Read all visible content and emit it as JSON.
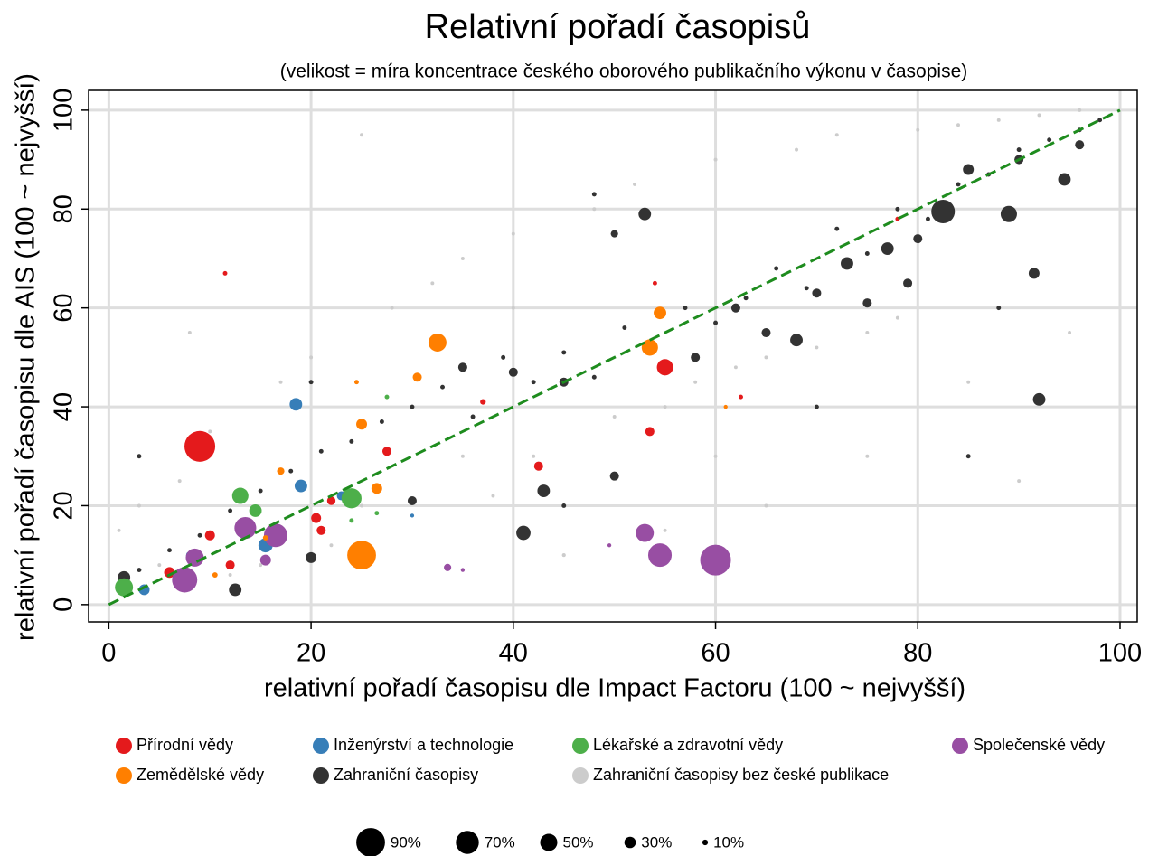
{
  "chart_data": {
    "type": "scatter",
    "title": "Relativní pořadí časopisů",
    "subtitle": "(velikost = míra koncentrace českého oborového publikačního výkonu v časopise)",
    "x_label": "relativní pořadí časopisu dle Impact Factoru (100 ~ nejvyšší)",
    "y_label": "relativní pořadí časopisu dle AIS (100 ~ nejvyšší)",
    "xlim": [
      -2,
      101.7
    ],
    "ylim": [
      -3.5,
      104
    ],
    "xticks": [
      0,
      20,
      40,
      60,
      80,
      100
    ],
    "yticks": [
      0,
      20,
      40,
      60,
      80,
      100
    ],
    "grid": true,
    "diagonal": {
      "color": "#1e8c1e",
      "dashed": true
    },
    "size_legend": [
      {
        "value": 90,
        "label": "90%"
      },
      {
        "value": 70,
        "label": "70%"
      },
      {
        "value": 50,
        "label": "50%"
      },
      {
        "value": 30,
        "label": "30%"
      },
      {
        "value": 10,
        "label": "10%"
      }
    ],
    "series": [
      {
        "name": "Přírodní vědy",
        "color": "#e41a1c",
        "x": [
          9,
          55,
          53.5,
          42.5,
          27.5,
          20.5,
          21,
          12,
          10,
          6,
          8.5,
          22,
          37,
          11.5,
          54,
          62.5,
          78
        ],
        "y": [
          32,
          48,
          35,
          28,
          31,
          17.5,
          15,
          8,
          14,
          6.5,
          9,
          21,
          41,
          67,
          65,
          42,
          78
        ],
        "sizes": [
          97,
          47,
          22,
          22,
          22,
          25,
          22,
          22,
          25,
          28,
          22,
          20,
          10,
          6,
          6,
          6,
          6
        ]
      },
      {
        "name": "Inženýrství a technologie",
        "color": "#377eb8",
        "x": [
          18.5,
          19,
          23,
          15.5,
          3.5,
          8,
          30
        ],
        "y": [
          40.5,
          24,
          22,
          12,
          3,
          10,
          18
        ],
        "sizes": [
          34,
          34,
          22,
          40,
          28,
          16,
          4
        ]
      },
      {
        "name": "Lékařské a zdravotní vědy",
        "color": "#4daf4a",
        "x": [
          1.5,
          13,
          24,
          14.5,
          27.5,
          26.5,
          24
        ],
        "y": [
          3.5,
          22,
          21.5,
          19,
          42,
          18.5,
          17
        ],
        "sizes": [
          53,
          47,
          60,
          34,
          6,
          6,
          6
        ]
      },
      {
        "name": "Společenské vědy",
        "color": "#984ea3",
        "x": [
          60,
          54.5,
          53,
          16.5,
          13.5,
          8.5,
          7.5,
          15.5,
          33.5,
          49.5,
          35
        ],
        "y": [
          9,
          10,
          14.5,
          14,
          15.5,
          9.5,
          5,
          9,
          7.5,
          12,
          7
        ],
        "sizes": [
          97,
          72,
          53,
          72,
          66,
          53,
          78,
          28,
          16,
          4,
          4
        ]
      },
      {
        "name": "Zemědělské vědy",
        "color": "#ff7f00",
        "x": [
          25,
          32.5,
          54.5,
          53.5,
          25,
          30.5,
          26.5,
          17,
          10.5,
          15.5,
          24.5,
          61
        ],
        "y": [
          10,
          53,
          59,
          52,
          36.5,
          46,
          23.5,
          27,
          6,
          13.5,
          45,
          40
        ],
        "sizes": [
          90,
          53,
          34,
          47,
          28,
          22,
          28,
          16,
          9,
          9,
          6,
          4
        ]
      },
      {
        "name": "Zahraniční časopisy",
        "color": "#333333",
        "x": [
          82.5,
          89,
          94.5,
          92,
          91.5,
          68,
          77,
          73,
          53,
          41,
          43,
          12.5,
          1.5,
          50,
          35,
          40,
          45,
          62,
          70,
          85,
          90,
          96,
          50,
          80,
          75,
          20,
          30,
          58,
          65,
          79,
          3,
          6,
          9,
          12,
          15,
          18,
          21,
          24,
          27,
          30,
          33,
          36,
          39,
          42,
          45,
          48,
          51,
          54,
          57,
          60,
          63,
          66,
          69,
          72,
          75,
          78,
          81,
          84,
          87,
          90,
          93,
          96,
          98,
          3,
          20,
          45,
          70,
          85,
          48,
          88
        ],
        "y": [
          79.5,
          79,
          86,
          41.5,
          67,
          53.5,
          72,
          69,
          79,
          14.5,
          23,
          3,
          5.5,
          26,
          48,
          47,
          45,
          60,
          63,
          88,
          90,
          93,
          75,
          74,
          61,
          9.5,
          21,
          50,
          55,
          65,
          7,
          11,
          14,
          19,
          23,
          27,
          31,
          33,
          37,
          40,
          44,
          38,
          50,
          45,
          51,
          46,
          56,
          52,
          60,
          57,
          62,
          68,
          64,
          76,
          71,
          80,
          78,
          85,
          87,
          92,
          94,
          96,
          98,
          30,
          45,
          20,
          40,
          30,
          83,
          60
        ],
        "sizes": [
          72,
          47,
          34,
          34,
          28,
          34,
          34,
          34,
          34,
          40,
          34,
          34,
          34,
          22,
          22,
          22,
          22,
          22,
          22,
          28,
          22,
          22,
          16,
          22,
          22,
          28,
          22,
          22,
          22,
          22,
          6,
          6,
          6,
          6,
          6,
          6,
          6,
          6,
          6,
          6,
          6,
          6,
          6,
          6,
          6,
          6,
          6,
          6,
          6,
          6,
          6,
          6,
          6,
          6,
          6,
          6,
          6,
          6,
          6,
          6,
          6,
          6,
          6,
          6,
          6,
          6,
          6,
          6,
          6,
          6
        ]
      },
      {
        "name": "Zahraniční časopisy bez české publikace",
        "color": "#cccccc",
        "x": [
          1,
          3,
          5,
          7,
          10,
          12,
          15,
          17,
          20,
          22,
          25,
          28,
          30,
          32,
          35,
          38,
          40,
          42,
          45,
          48,
          50,
          52,
          55,
          58,
          60,
          62,
          65,
          68,
          70,
          72,
          75,
          78,
          80,
          84,
          88,
          92,
          96,
          99,
          8,
          25,
          35,
          45,
          55,
          65,
          75,
          85,
          95,
          60,
          40,
          90
        ],
        "y": [
          15,
          20,
          8,
          25,
          35,
          6,
          8,
          45,
          50,
          12,
          95,
          60,
          18,
          65,
          70,
          22,
          75,
          30,
          10,
          80,
          38,
          85,
          15,
          45,
          90,
          48,
          20,
          92,
          52,
          95,
          30,
          58,
          96,
          97,
          98,
          99,
          100,
          99,
          55,
          20,
          30,
          10,
          40,
          50,
          55,
          45,
          55,
          30,
          60,
          25
        ],
        "sizes": [
          3,
          3,
          3,
          3,
          3,
          3,
          3,
          3,
          3,
          3,
          3,
          3,
          3,
          3,
          3,
          3,
          3,
          3,
          3,
          3,
          3,
          3,
          3,
          3,
          3,
          3,
          3,
          3,
          3,
          3,
          3,
          3,
          3,
          3,
          3,
          3,
          3,
          3,
          3,
          3,
          3,
          3,
          3,
          3,
          3,
          3,
          3,
          3,
          3,
          3
        ]
      }
    ]
  }
}
